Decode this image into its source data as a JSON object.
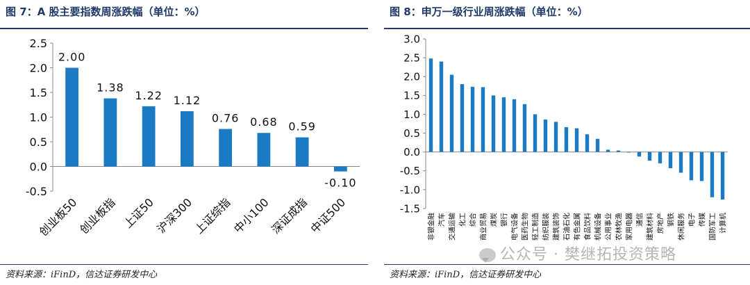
{
  "left": {
    "title": "图 7：A 股主要指数周涨跌幅（单位：%）",
    "source": "资料来源：iFinD，信达证券研发中心"
  },
  "right": {
    "title": "图 8：申万一级行业周涨跌幅（单位：%）",
    "source": "资料来源：iFinD，信达证券研发中心"
  },
  "watermark": "公众号 · 樊继拓投资策略",
  "colors": {
    "bar": "#1a7ac4",
    "title": "#1f3a68"
  },
  "chart_data": [
    {
      "type": "bar",
      "title": "A 股主要指数周涨跌幅（单位：%）",
      "categories": [
        "创业板50",
        "创业板指",
        "上证50",
        "沪深300",
        "上证综指",
        "中小100",
        "深证成指",
        "中证500"
      ],
      "values": [
        2.0,
        1.38,
        1.22,
        1.12,
        0.76,
        0.68,
        0.59,
        -0.1
      ],
      "data_labels": [
        "2.00",
        "1.38",
        "1.22",
        "1.12",
        "0.76",
        "0.68",
        "0.59",
        "-0.10"
      ],
      "yticks": [
        "2.5",
        "2.0",
        "1.5",
        "1.0",
        "0.5",
        "0.0",
        "-0.5"
      ],
      "ylim": [
        -0.5,
        2.5
      ],
      "xlabel": "",
      "ylabel": "",
      "grid": false
    },
    {
      "type": "bar",
      "title": "申万一级行业周涨跌幅（单位：%）",
      "categories": [
        "非银金融",
        "汽车",
        "交通运输",
        "化工",
        "综合",
        "商业贸易",
        "煤炭",
        "银行",
        "电气设备",
        "医药生物",
        "轻工制造",
        "纺织服装",
        "建筑装饰",
        "石油石化",
        "有色金属",
        "食品饮料",
        "机械设备",
        "公用事业",
        "农林牧渔",
        "家用电器",
        "通信",
        "建筑材料",
        "房地产",
        "钢铁",
        "休闲服务",
        "电子",
        "传媒",
        "国防军工",
        "计算机"
      ],
      "values": [
        2.48,
        2.4,
        2.05,
        1.8,
        1.73,
        1.72,
        1.5,
        1.45,
        1.4,
        1.27,
        1.0,
        0.86,
        0.8,
        0.66,
        0.63,
        0.47,
        0.35,
        0.06,
        0.04,
        0.0,
        -0.12,
        -0.23,
        -0.3,
        -0.43,
        -0.55,
        -0.75,
        -0.77,
        -1.2,
        -1.26
      ],
      "yticks": [
        "3.0",
        "2.5",
        "2.0",
        "1.5",
        "1.0",
        "0.5",
        "0.0",
        "-0.5",
        "-1.0",
        "-1.5"
      ],
      "ylim": [
        -1.5,
        3.0
      ],
      "xlabel": "",
      "ylabel": "",
      "grid": false
    }
  ]
}
